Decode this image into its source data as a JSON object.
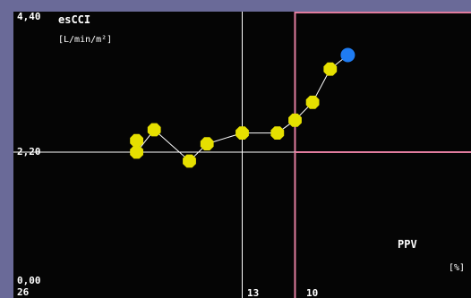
{
  "chart_data": {
    "type": "scatter",
    "y_axis": {
      "name": "esCCI",
      "unit": "[L/min/m²]",
      "min_label": "0,00",
      "mid_label": "2,20",
      "max_label": "4,40",
      "ylim": [
        0.0,
        4.4
      ],
      "threshold": 2.2
    },
    "x_axis": {
      "name": "PPV",
      "unit": "[%]",
      "max_label": "26",
      "mid_label": "13",
      "threshold_label": "10",
      "xlim": [
        26,
        0
      ],
      "midline": 13,
      "threshold": 10
    },
    "series": [
      {
        "points": [
          {
            "x": 19.0,
            "y": 2.38
          },
          {
            "x": 19.0,
            "y": 2.2
          },
          {
            "x": 18.0,
            "y": 2.55
          },
          {
            "x": 16.0,
            "y": 2.06
          },
          {
            "x": 15.0,
            "y": 2.33
          },
          {
            "x": 13.0,
            "y": 2.5
          },
          {
            "x": 11.0,
            "y": 2.5
          },
          {
            "x": 10.0,
            "y": 2.7
          },
          {
            "x": 9.0,
            "y": 2.98
          },
          {
            "x": 8.0,
            "y": 3.5
          }
        ],
        "current": {
          "x": 7.0,
          "y": 3.72
        }
      }
    ],
    "colors": {
      "trend_point": "#e6e000",
      "trend_line": "#ffffff",
      "current_point": "#1f7cf2",
      "target_box": "#e07c9e",
      "crosshair": "#ffffff",
      "frame": "#6a6a98",
      "plot_background": "#050505"
    },
    "grid": false
  }
}
